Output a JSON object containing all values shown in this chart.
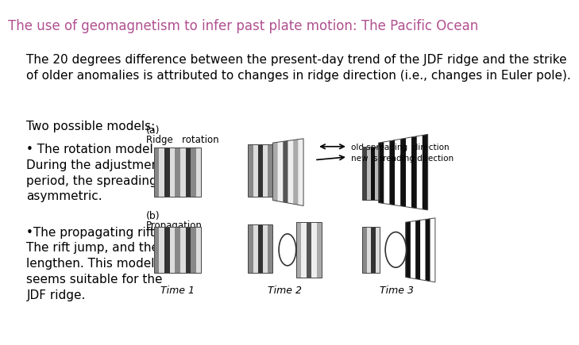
{
  "title": "The use of geomagnetism to infer past plate motion: The Pacific Ocean",
  "title_color": "#b05090",
  "title_fontsize": 12,
  "background_color": "#ffffff",
  "body_text_1": "The 20 degrees difference between the present-day trend of the JDF ridge and the strike\nof older anomalies is attributed to changes in ridge direction (i.e., changes in Euler pole).",
  "body_text_1_fontsize": 11,
  "section_label": "Two possible models:",
  "section_label_fontsize": 11,
  "bullet1_text": "• The rotation model.\nDuring the adjustment\nperiod, the spreading is\nasymmetric.",
  "bullet1_fontsize": 11,
  "bullet2_text": "•The propagating rifting.\nThe rift jump, and then\nlengthen. This model\nseems suitable for the\nJDF ridge.",
  "bullet2_fontsize": 11,
  "stripe_dark": "#333333",
  "stripe_mid": "#777777",
  "stripe_light": "#bbbbbb",
  "stripe_white": "#eeeeee",
  "stripe_black": "#111111"
}
